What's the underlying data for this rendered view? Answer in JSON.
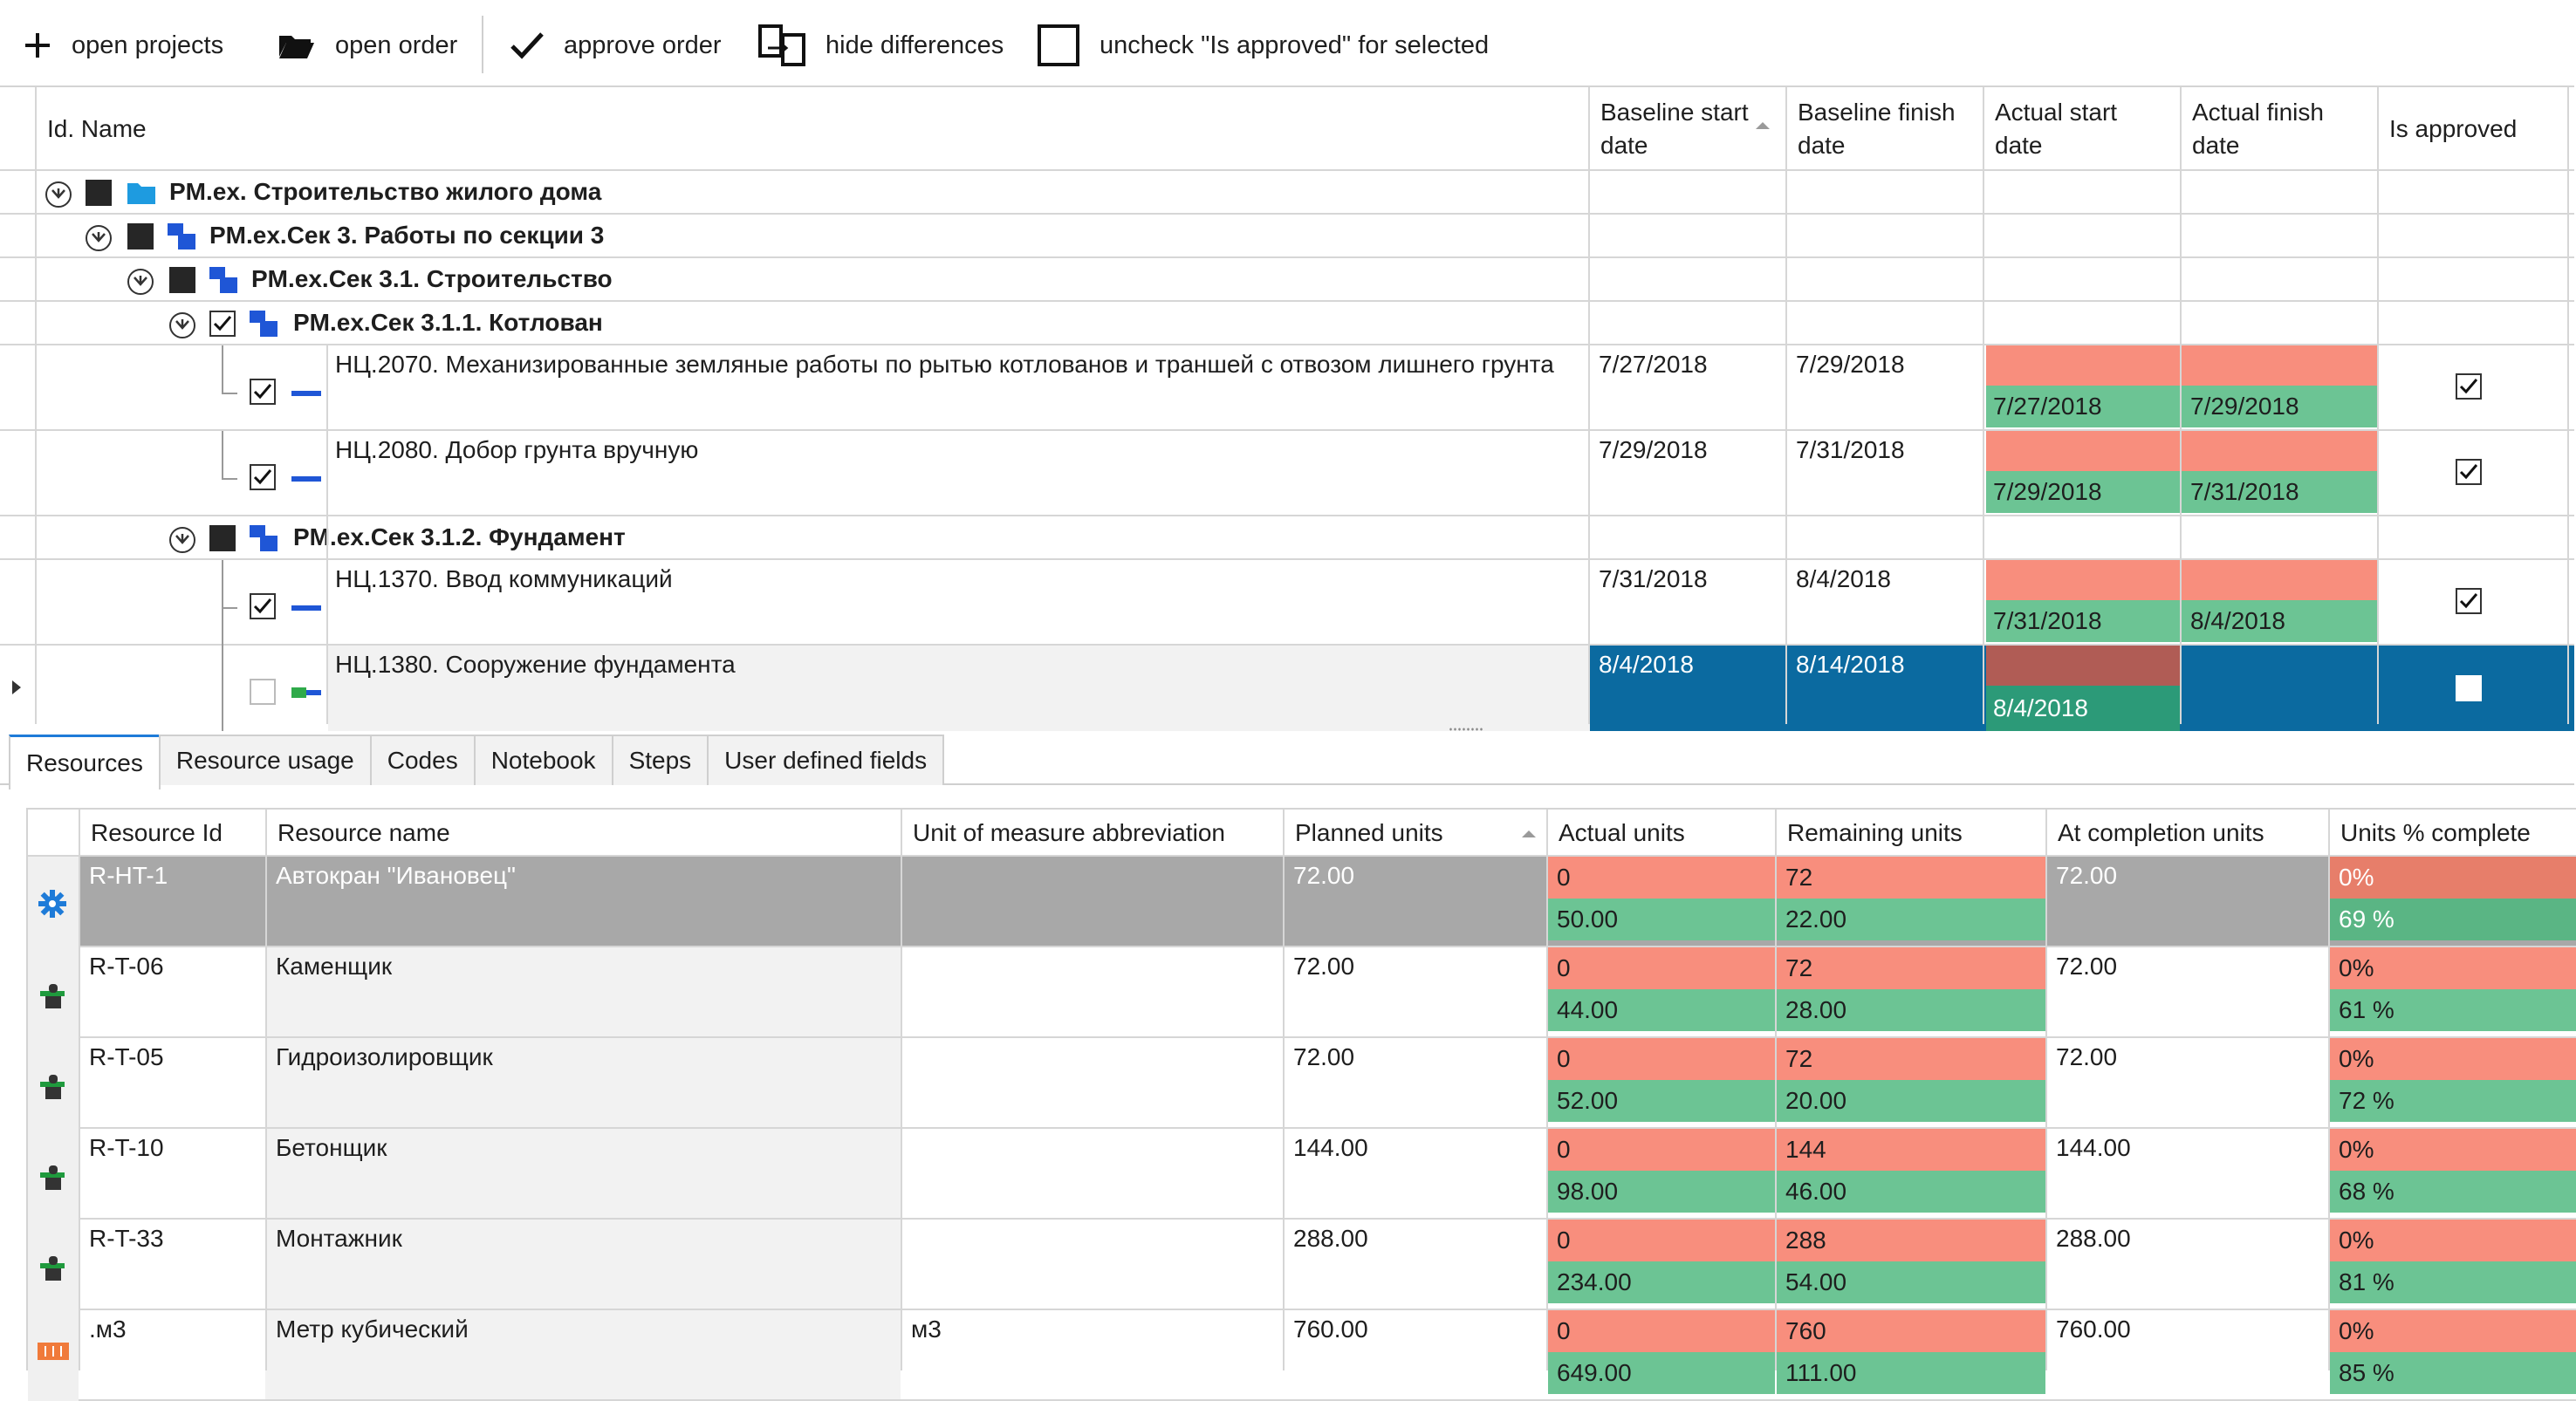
{
  "toolbar": {
    "open_projects": "open projects",
    "open_order": "open order",
    "approve_order": "approve order",
    "hide_differences": "hide differences",
    "uncheck_approved": "uncheck \"Is approved\" for selected"
  },
  "activities_grid": {
    "columns": {
      "name": "Id. Name",
      "baseline_start": "Baseline start date",
      "baseline_finish": "Baseline finish date",
      "actual_start": "Actual start date",
      "actual_finish": "Actual finish date",
      "is_approved": "Is approved"
    },
    "wbs": [
      {
        "name": "PM.ex. Строительство жилого дома"
      },
      {
        "name": "PM.ex.Сек 3. Работы по секции 3"
      },
      {
        "name": "PM.ex.Сек 3.1. Строительство"
      },
      {
        "name": "PM.ex.Сек 3.1.1. Котлован"
      },
      {
        "name": "PM.ex.Сек 3.1.2. Фундамент"
      }
    ],
    "activities": [
      {
        "name": "НЦ.2070. Механизированные земляные работы по рытью котлованов и траншей с отвозом лишнего грунта",
        "baseline_start": "7/27/2018",
        "baseline_finish": "7/29/2018",
        "actual_start": "7/27/2018",
        "actual_finish": "7/29/2018",
        "approved": true
      },
      {
        "name": "НЦ.2080. Добор грунта вручную",
        "baseline_start": "7/29/2018",
        "baseline_finish": "7/31/2018",
        "actual_start": "7/29/2018",
        "actual_finish": "7/31/2018",
        "approved": true
      },
      {
        "name": "НЦ.1370. Ввод коммуникаций",
        "baseline_start": "7/31/2018",
        "baseline_finish": "8/4/2018",
        "actual_start": "7/31/2018",
        "actual_finish": "8/4/2018",
        "approved": true
      },
      {
        "name": "НЦ.1380. Сооружение фундамента",
        "baseline_start": "8/4/2018",
        "baseline_finish": "8/14/2018",
        "actual_start": "8/4/2018",
        "actual_finish": "",
        "approved": false
      }
    ]
  },
  "tabs": [
    "Resources",
    "Resource usage",
    "Codes",
    "Notebook",
    "Steps",
    "User defined fields"
  ],
  "resources_grid": {
    "columns": {
      "resource_id": "Resource Id",
      "resource_name": "Resource name",
      "uom": "Unit of measure abbreviation",
      "planned": "Planned units",
      "actual": "Actual units",
      "remaining": "Remaining units",
      "at_completion": "At completion units",
      "pct_complete": "Units % complete"
    },
    "rows": [
      {
        "id": "R-HT-1",
        "name": "Автокран \"Ивановец\"",
        "uom": "",
        "planned": "72.00",
        "actual_old": "0",
        "actual_new": "50.00",
        "remaining_old": "72",
        "remaining_new": "22.00",
        "at_completion": "72.00",
        "pct_old": "0%",
        "pct_new": "69 %",
        "icon": "gear-icon"
      },
      {
        "id": "R-T-06",
        "name": "Каменщик",
        "uom": "",
        "planned": "72.00",
        "actual_old": "0",
        "actual_new": "44.00",
        "remaining_old": "72",
        "remaining_new": "28.00",
        "at_completion": "72.00",
        "pct_old": "0%",
        "pct_new": "61 %",
        "icon": "worker-icon"
      },
      {
        "id": "R-T-05",
        "name": "Гидроизолировщик",
        "uom": "",
        "planned": "72.00",
        "actual_old": "0",
        "actual_new": "52.00",
        "remaining_old": "72",
        "remaining_new": "20.00",
        "at_completion": "72.00",
        "pct_old": "0%",
        "pct_new": "72 %",
        "icon": "worker-icon"
      },
      {
        "id": "R-T-10",
        "name": "Бетонщик",
        "uom": "",
        "planned": "144.00",
        "actual_old": "0",
        "actual_new": "98.00",
        "remaining_old": "144",
        "remaining_new": "46.00",
        "at_completion": "144.00",
        "pct_old": "0%",
        "pct_new": "68 %",
        "icon": "worker-icon"
      },
      {
        "id": "R-T-33",
        "name": "Монтажник",
        "uom": "",
        "planned": "288.00",
        "actual_old": "0",
        "actual_new": "234.00",
        "remaining_old": "288",
        "remaining_new": "54.00",
        "at_completion": "288.00",
        "pct_old": "0%",
        "pct_new": "81 %",
        "icon": "worker-icon"
      },
      {
        "id": ".м3",
        "name": "Метр кубический",
        "uom": "м3",
        "planned": "760.00",
        "actual_old": "0",
        "actual_new": "649.00",
        "remaining_old": "760",
        "remaining_new": "111.00",
        "at_completion": "760.00",
        "pct_old": "0%",
        "pct_new": "85 %",
        "icon": "material-icon"
      }
    ]
  },
  "colors": {
    "changed_old": "#f88e7d",
    "changed_new": "#6cc494",
    "selected_row": "#0b6aa0",
    "wbs_icon": "#1f56d6",
    "root_icon": "#1e9be0"
  }
}
